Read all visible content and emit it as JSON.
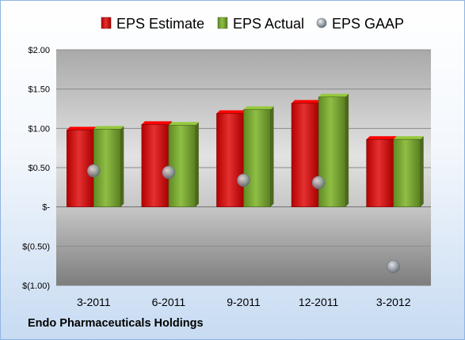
{
  "chart_data": {
    "type": "bar",
    "categories": [
      "3-2011",
      "6-2011",
      "9-2011",
      "12-2011",
      "3-2012"
    ],
    "series": [
      {
        "name": "EPS Estimate",
        "kind": "bar",
        "color": "#cc0000",
        "values": [
          0.98,
          1.05,
          1.19,
          1.32,
          0.86
        ]
      },
      {
        "name": "EPS Actual",
        "kind": "bar",
        "color": "#77a030",
        "values": [
          0.99,
          1.04,
          1.24,
          1.4,
          0.86
        ]
      },
      {
        "name": "EPS GAAP",
        "kind": "marker",
        "color": "#9aa3ab",
        "values": [
          0.46,
          0.44,
          0.34,
          0.31,
          -0.76
        ]
      }
    ],
    "ylim": [
      -1.0,
      2.0
    ],
    "y_ticks": [
      {
        "value": 2.0,
        "label": "$2.00"
      },
      {
        "value": 1.5,
        "label": "$1.50"
      },
      {
        "value": 1.0,
        "label": "$1.00"
      },
      {
        "value": 0.5,
        "label": "$0.50"
      },
      {
        "value": 0.0,
        "label": "$-"
      },
      {
        "value": -0.5,
        "label": "$(0.50)"
      },
      {
        "value": -1.0,
        "label": "$(1.00)"
      }
    ],
    "grid": true,
    "legend_position": "top"
  },
  "footer": {
    "company": "Endo Pharmaceuticals Holdings"
  }
}
